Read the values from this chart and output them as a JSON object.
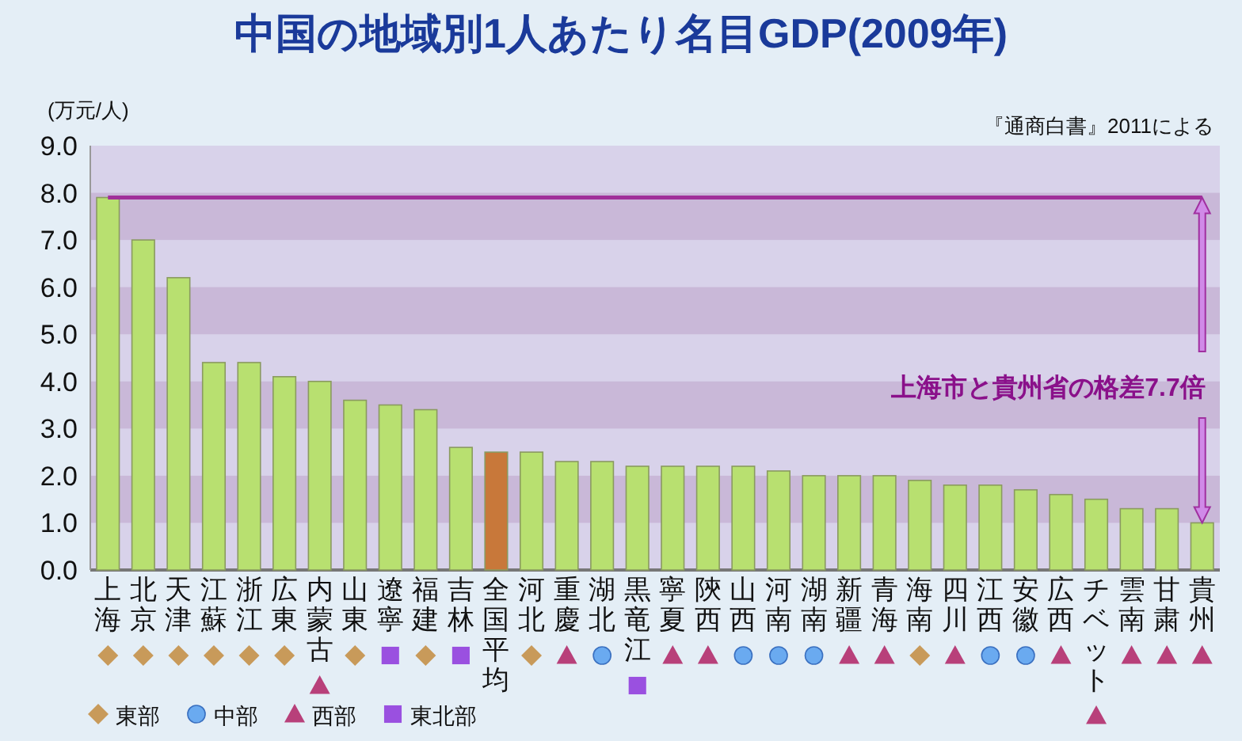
{
  "chart_data": {
    "type": "bar",
    "title": "中国の地域別1人あたり名目GDP(2009年)",
    "ylabel": "(万元/人)",
    "categories": [
      "上海",
      "北京",
      "天津",
      "江蘇",
      "浙江",
      "広東",
      "内蒙古",
      "山東",
      "遼寧",
      "福建",
      "吉林",
      "全国平均",
      "河北",
      "重慶",
      "湖北",
      "黒竜江",
      "寧夏",
      "陝西",
      "山西",
      "河南",
      "湖南",
      "新疆",
      "青海",
      "海南",
      "四川",
      "江西",
      "安徽",
      "広西",
      "チベット",
      "雲南",
      "甘粛",
      "貴州"
    ],
    "values": [
      7.9,
      7.0,
      6.2,
      4.4,
      4.4,
      4.1,
      4.0,
      3.6,
      3.5,
      3.4,
      2.6,
      2.5,
      2.5,
      2.3,
      2.3,
      2.2,
      2.2,
      2.2,
      2.2,
      2.1,
      2.0,
      2.0,
      2.0,
      1.9,
      1.8,
      1.8,
      1.7,
      1.6,
      1.5,
      1.3,
      1.3,
      1.0
    ],
    "colors": [
      "#b8e070",
      "#b8e070",
      "#b8e070",
      "#b8e070",
      "#b8e070",
      "#b8e070",
      "#b8e070",
      "#b8e070",
      "#b8e070",
      "#b8e070",
      "#b8e070",
      "#c8783a",
      "#b8e070",
      "#b8e070",
      "#b8e070",
      "#b8e070",
      "#b8e070",
      "#b8e070",
      "#b8e070",
      "#b8e070",
      "#b8e070",
      "#b8e070",
      "#b8e070",
      "#b8e070",
      "#b8e070",
      "#b8e070",
      "#b8e070",
      "#b8e070",
      "#b8e070",
      "#b8e070",
      "#b8e070",
      "#b8e070"
    ],
    "series": [
      {
        "name": "東部",
        "type": "scatter",
        "marker": "diamond",
        "color": "#c89a5a",
        "x": [
          "上海",
          "北京",
          "天津",
          "江蘇",
          "浙江",
          "広東",
          "山東",
          "福建",
          "河北",
          "海南"
        ],
        "values": [
          null,
          null,
          null,
          null,
          null,
          null,
          null,
          null,
          null,
          null
        ]
      },
      {
        "name": "中部",
        "type": "scatter",
        "marker": "circle",
        "color": "#6aaaf0",
        "x": [
          "湖北",
          "山西",
          "河南",
          "湖南",
          "江西",
          "安徽"
        ],
        "values": [
          null,
          null,
          null,
          null,
          null,
          null
        ]
      },
      {
        "name": "西部",
        "type": "scatter",
        "marker": "triangle",
        "color": "#b8407a",
        "x": [
          "内蒙古",
          "重慶",
          "寧夏",
          "陝西",
          "新疆",
          "青海",
          "四川",
          "広西",
          "チベット",
          "雲南",
          "甘粛",
          "貴州"
        ],
        "values": [
          null,
          null,
          null,
          null,
          null,
          null,
          null,
          null,
          null,
          null,
          null,
          null
        ]
      },
      {
        "name": "東北部",
        "type": "scatter",
        "marker": "square",
        "color": "#9a50e0",
        "x": [
          "遼寧",
          "吉林",
          "黒竜江"
        ],
        "values": [
          null,
          null,
          null
        ]
      }
    ],
    "ylim": [
      0,
      9
    ],
    "yticks": [
      {
        "value": 0,
        "label": "0.0"
      },
      {
        "value": 1,
        "label": "1.0"
      },
      {
        "value": 2,
        "label": "2.0"
      },
      {
        "value": 3,
        "label": "3.0"
      },
      {
        "value": 4,
        "label": "4.0"
      },
      {
        "value": 5,
        "label": "5.0"
      },
      {
        "value": 6,
        "label": "6.0"
      },
      {
        "value": 7,
        "label": "7.0"
      },
      {
        "value": 8,
        "label": "8.0"
      },
      {
        "value": 9,
        "label": "9.0"
      }
    ],
    "legend": "bottom left",
    "ref_lines": [
      {
        "axis": "y",
        "value": 7.9,
        "color": "#a0309a"
      }
    ],
    "annotations": [
      "『通商白書』2011による",
      "上海市と貴州省の格差7.7倍"
    ]
  }
}
